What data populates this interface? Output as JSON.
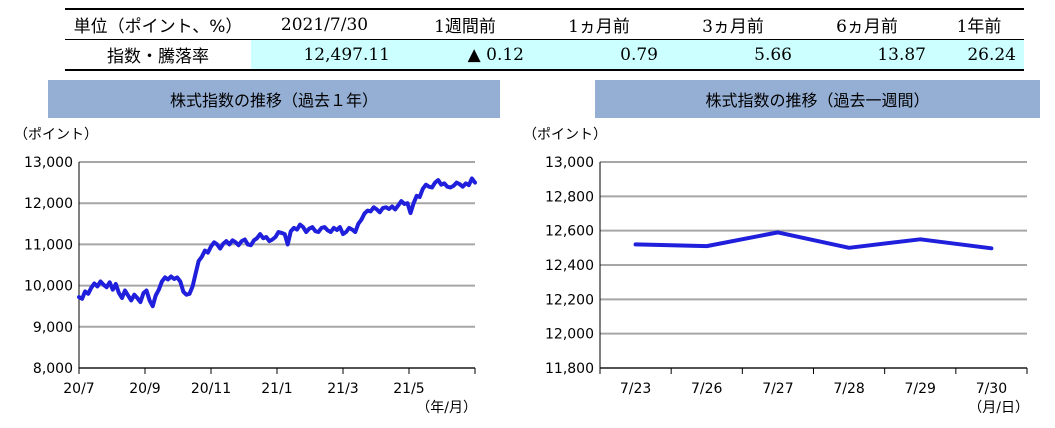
{
  "table": {
    "header": [
      "単位（ポイント、%）",
      "2021/7/30",
      "1週間前",
      "1ヵ月前",
      "3ヵ月前",
      "6ヵ月前",
      "1年前"
    ],
    "row_label": "指数・騰落率",
    "row_values": [
      "12,497.11",
      "▲ 0.12",
      "0.79",
      "5.66",
      "13.87",
      "26.24"
    ]
  },
  "line_color": "#1f1fdc",
  "grid_color": "#a6a6a6",
  "chart_data": [
    {
      "type": "line",
      "title": "株式指数の推移（過去１年）",
      "ylabel": "（ポイント）",
      "xlabel": "（年/月）",
      "ylim": [
        8000,
        13000
      ],
      "y_ticks": [
        8000,
        9000,
        10000,
        11000,
        12000,
        13000
      ],
      "y_tick_labels": [
        "8,000",
        "9,000",
        "10,000",
        "11,000",
        "12,000",
        "13,000"
      ],
      "x_tick_labels": [
        "20/7",
        "20/9",
        "20/11",
        "21/1",
        "21/3",
        "21/5"
      ],
      "x_range": [
        0,
        12.9
      ],
      "x": [
        0,
        0.1,
        0.2,
        0.3,
        0.4,
        0.5,
        0.6,
        0.7,
        0.8,
        0.9,
        1.0,
        1.1,
        1.2,
        1.3,
        1.4,
        1.5,
        1.6,
        1.7,
        1.8,
        1.9,
        2.0,
        2.1,
        2.2,
        2.3,
        2.4,
        2.5,
        2.6,
        2.7,
        2.8,
        2.9,
        3.0,
        3.1,
        3.2,
        3.3,
        3.4,
        3.5,
        3.6,
        3.7,
        3.8,
        3.9,
        4.0,
        4.1,
        4.2,
        4.3,
        4.4,
        4.5,
        4.6,
        4.7,
        4.8,
        4.9,
        5.0,
        5.1,
        5.2,
        5.3,
        5.4,
        5.5,
        5.6,
        5.7,
        5.8,
        5.9,
        6.0,
        6.1,
        6.2,
        6.3,
        6.4,
        6.5,
        6.6,
        6.7,
        6.8,
        6.9,
        7.0,
        7.1,
        7.2,
        7.3,
        7.4,
        7.5,
        7.6,
        7.7,
        7.8,
        7.9,
        8.0,
        8.1,
        8.2,
        8.3,
        8.4,
        8.5,
        8.6,
        8.7,
        8.8,
        8.9,
        9.0,
        9.1,
        9.2,
        9.3,
        9.4,
        9.5,
        9.6,
        9.7,
        9.8,
        9.9,
        10.0,
        10.1,
        10.2,
        10.3,
        10.4,
        10.5,
        10.6,
        10.7,
        10.8,
        10.9,
        11.0,
        11.1,
        11.2,
        11.3,
        11.4,
        11.5,
        11.6,
        11.7,
        11.8,
        11.9,
        12.0,
        12.1,
        12.2,
        12.3,
        12.4,
        12.5,
        12.6,
        12.7,
        12.8,
        12.9
      ],
      "values": [
        9720,
        9680,
        9860,
        9800,
        9950,
        10050,
        9980,
        10100,
        10020,
        9960,
        10080,
        9900,
        10040,
        9820,
        9700,
        9880,
        9760,
        9640,
        9780,
        9700,
        9600,
        9820,
        9880,
        9640,
        9500,
        9760,
        9900,
        10100,
        10200,
        10150,
        10220,
        10160,
        10200,
        10100,
        9850,
        9780,
        9800,
        9980,
        10300,
        10600,
        10700,
        10850,
        10800,
        10950,
        11050,
        11000,
        10900,
        11020,
        11080,
        11000,
        11100,
        11050,
        10980,
        11080,
        11120,
        11000,
        10980,
        11100,
        11150,
        11250,
        11150,
        11180,
        11080,
        11120,
        11180,
        11300,
        11280,
        11250,
        11000,
        11320,
        11400,
        11360,
        11480,
        11420,
        11300,
        11380,
        11420,
        11320,
        11300,
        11400,
        11420,
        11340,
        11300,
        11400,
        11350,
        11420,
        11250,
        11300,
        11400,
        11360,
        11300,
        11500,
        11600,
        11750,
        11820,
        11800,
        11900,
        11850,
        11780,
        11880,
        11900,
        11860,
        11920,
        11850,
        11950,
        12050,
        11980,
        12000,
        11760,
        12000,
        12180,
        12150,
        12350,
        12450,
        12400,
        12380,
        12500,
        12560,
        12450,
        12480,
        12400,
        12380,
        12420,
        12500,
        12460,
        12400,
        12480,
        12440,
        12600,
        12500
      ]
    },
    {
      "type": "line",
      "title": "株式指数の推移（過去一週間）",
      "ylabel": "（ポイント）",
      "xlabel": "（月/日）",
      "ylim": [
        11800,
        13000
      ],
      "y_ticks": [
        11800,
        12000,
        12200,
        12400,
        12600,
        12800,
        13000
      ],
      "y_tick_labels": [
        "11,800",
        "12,000",
        "12,200",
        "12,400",
        "12,600",
        "12,800",
        "13,000"
      ],
      "categories": [
        "7/23",
        "7/26",
        "7/27",
        "7/28",
        "7/29",
        "7/30"
      ],
      "values": [
        12520,
        12510,
        12590,
        12500,
        12550,
        12497
      ]
    }
  ]
}
